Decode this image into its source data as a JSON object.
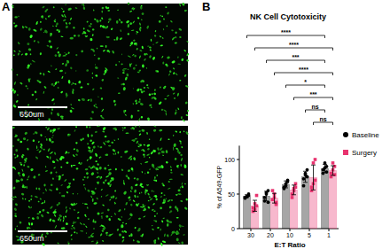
{
  "panel_labels": [
    "A",
    "B"
  ],
  "images": [
    {
      "scale_bar": "650um"
    },
    {
      "scale_bar": "650um"
    }
  ],
  "chart_data": {
    "type": "bar",
    "title": "NK Cell Cytotoxicity",
    "x_label": "E:T Ratio",
    "y_label": "% of A549-GFP",
    "categories": [
      "30",
      "20",
      "10",
      "5",
      "1"
    ],
    "ylim": [
      0,
      120
    ],
    "yticks": [
      0,
      50,
      100
    ],
    "grid": false,
    "legend": "right",
    "series": [
      {
        "name": "Baseline",
        "color": "#000000",
        "marker": "circle",
        "values": [
          47,
          47,
          64,
          75,
          87
        ],
        "errors": [
          2,
          7,
          5,
          8,
          6
        ],
        "points": [
          [
            45,
            47,
            48,
            44,
            46,
            50
          ],
          [
            40,
            50,
            55,
            45,
            52,
            38
          ],
          [
            60,
            65,
            70,
            58,
            62,
            68
          ],
          [
            62,
            78,
            85,
            72,
            80,
            75
          ],
          [
            80,
            95,
            90,
            85,
            88,
            82
          ]
        ]
      },
      {
        "name": "Surgery",
        "color": "#e8336f",
        "marker": "square",
        "values": [
          33,
          44,
          56,
          74,
          84
        ],
        "errors": [
          8,
          7,
          7,
          18,
          7
        ],
        "points": [
          [
            30,
            36,
            48,
            25,
            28,
            33
          ],
          [
            42,
            50,
            35,
            55,
            45,
            38
          ],
          [
            45,
            58,
            65,
            50,
            55,
            60
          ],
          [
            55,
            95,
            100,
            60,
            65,
            70
          ],
          [
            75,
            95,
            90,
            80,
            85,
            78
          ]
        ]
      }
    ],
    "comparisons": [
      {
        "from": {
          "category": 0,
          "series": 0
        },
        "to": {
          "category": 4,
          "series": 0
        },
        "label": "****"
      },
      {
        "from": {
          "category": 0,
          "series": 1
        },
        "to": {
          "category": 4,
          "series": 1
        },
        "label": "****"
      },
      {
        "from": {
          "category": 1,
          "series": 0
        },
        "to": {
          "category": 4,
          "series": 0
        },
        "label": "***"
      },
      {
        "from": {
          "category": 1,
          "series": 1
        },
        "to": {
          "category": 4,
          "series": 1
        },
        "label": "****"
      },
      {
        "from": {
          "category": 2,
          "series": 0
        },
        "to": {
          "category": 4,
          "series": 0
        },
        "label": "*"
      },
      {
        "from": {
          "category": 2,
          "series": 1
        },
        "to": {
          "category": 4,
          "series": 1
        },
        "label": "***"
      },
      {
        "from": {
          "category": 3,
          "series": 0
        },
        "to": {
          "category": 4,
          "series": 0
        },
        "label": "ns"
      },
      {
        "from": {
          "category": 3,
          "series": 1
        },
        "to": {
          "category": 4,
          "series": 1
        },
        "label": "ns"
      }
    ]
  }
}
